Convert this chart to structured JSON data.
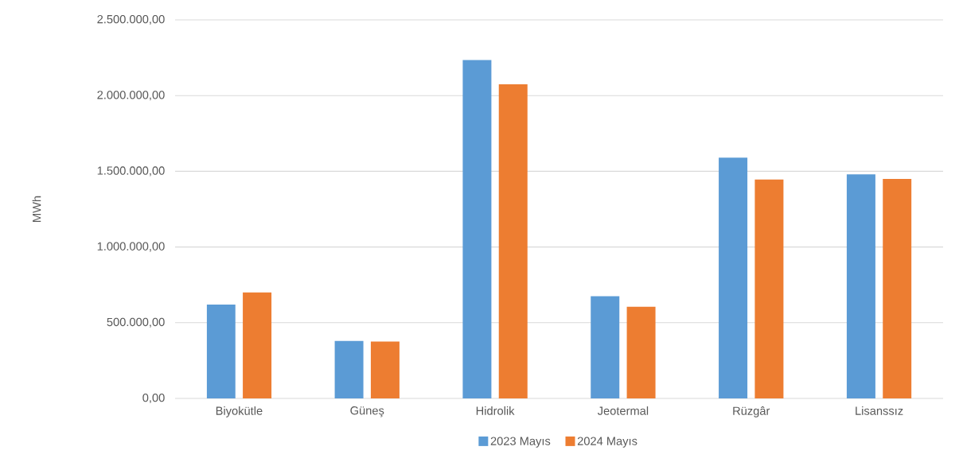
{
  "chart_data": {
    "type": "bar",
    "ylabel": "MWh",
    "categories": [
      "Biyokütle",
      "Güneş",
      "Hidrolik",
      "Jeotermal",
      "Rüzgâr",
      "Lisanssız"
    ],
    "series": [
      {
        "name": "2023 Mayıs",
        "color": "#5b9bd5",
        "values": [
          620000,
          380000,
          2235000,
          675000,
          1590000,
          1480000
        ]
      },
      {
        "name": "2024 Mayıs",
        "color": "#ed7d31",
        "values": [
          700000,
          375000,
          2075000,
          605000,
          1445000,
          1450000
        ]
      }
    ],
    "ylim": [
      0,
      2500000
    ],
    "yticks": [
      {
        "value": 0,
        "label": "0,00"
      },
      {
        "value": 500000,
        "label": "500.000,00"
      },
      {
        "value": 1000000,
        "label": "1.000.000,00"
      },
      {
        "value": 1500000,
        "label": "1.500.000,00"
      },
      {
        "value": 2000000,
        "label": "2.000.000,00"
      },
      {
        "value": 2500000,
        "label": "2.500.000,00"
      }
    ],
    "grid": "y",
    "legend": "bottom"
  }
}
